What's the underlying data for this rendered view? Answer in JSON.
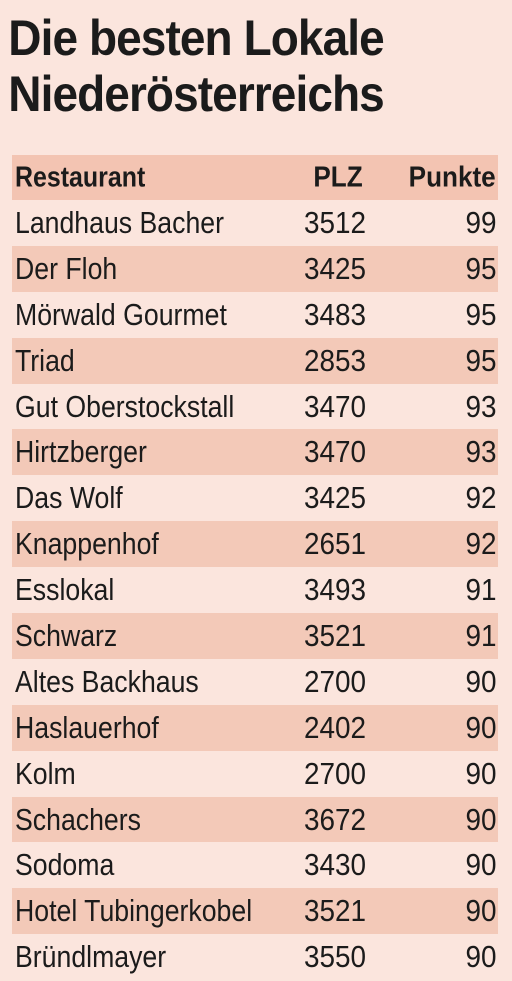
{
  "title_line1": "Die besten Lokale",
  "title_line2": "Niederösterreichs",
  "header": {
    "restaurant": "Restaurant",
    "plz": "PLZ",
    "punkte": "Punkte"
  },
  "rows": [
    {
      "name": "Landhaus Bacher",
      "plz": "3512",
      "punkte": "99"
    },
    {
      "name": "Der Floh",
      "plz": "3425",
      "punkte": "95"
    },
    {
      "name": "Mörwald Gourmet",
      "plz": "3483",
      "punkte": "95"
    },
    {
      "name": "Triad",
      "plz": "2853",
      "punkte": "95"
    },
    {
      "name": "Gut Oberstockstall",
      "plz": "3470",
      "punkte": "93"
    },
    {
      "name": "Hirtzberger",
      "plz": "3470",
      "punkte": "93"
    },
    {
      "name": "Das Wolf",
      "plz": "3425",
      "punkte": "92"
    },
    {
      "name": "Knappenhof",
      "plz": "2651",
      "punkte": "92"
    },
    {
      "name": "Esslokal",
      "plz": "3493",
      "punkte": "91"
    },
    {
      "name": "Schwarz",
      "plz": "3521",
      "punkte": "91"
    },
    {
      "name": "Altes Backhaus",
      "plz": "2700",
      "punkte": "90"
    },
    {
      "name": "Haslauerhof",
      "plz": "2402",
      "punkte": "90"
    },
    {
      "name": "Kolm",
      "plz": "2700",
      "punkte": "90"
    },
    {
      "name": "Schachers",
      "plz": "3672",
      "punkte": "90"
    },
    {
      "name": "Sodoma",
      "plz": "3430",
      "punkte": "90"
    },
    {
      "name": "Hotel Tubingerkobel",
      "plz": "3521",
      "punkte": "90"
    },
    {
      "name": "Bründlmayer",
      "plz": "3550",
      "punkte": "90"
    }
  ],
  "colors": {
    "background": "#fbe5dd",
    "header_band": "#f3c4b2",
    "alt_row_band": "#f3c9b8",
    "text": "#1b1b1b"
  }
}
